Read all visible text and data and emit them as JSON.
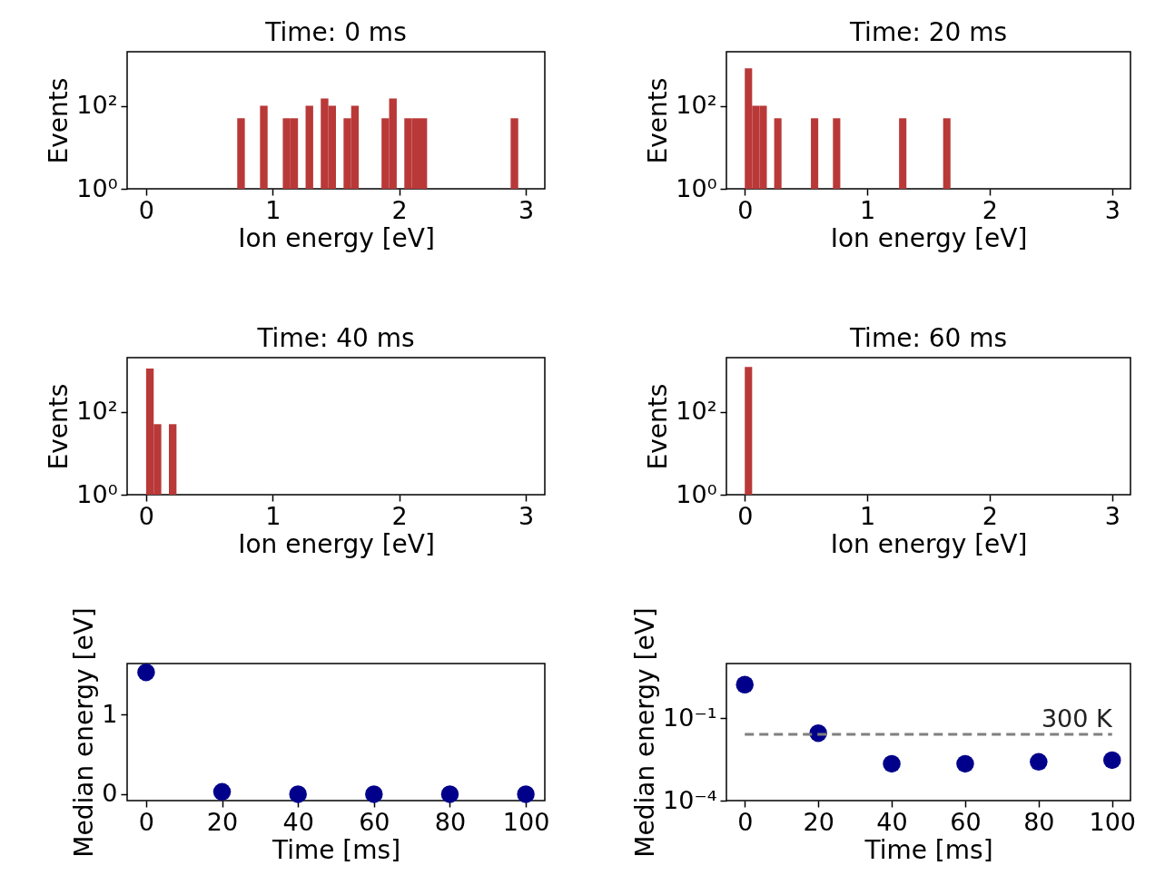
{
  "chart_data": [
    {
      "type": "histogram",
      "title": "Time: 0 ms",
      "xlabel": "Ion energy [eV]",
      "ylabel": "Events",
      "color": "#b93838",
      "log": true,
      "xlim": [
        -0.15,
        3.15
      ],
      "xticks": [
        0,
        1,
        2,
        3
      ],
      "ylim": [
        1,
        2000
      ],
      "yticks": [
        {
          "value": 1,
          "label": "10⁰"
        },
        {
          "value": 100,
          "label": "10²"
        }
      ],
      "bins": [
        0.72,
        0.78,
        0.9,
        0.96,
        1.08,
        1.14,
        1.2,
        1.26,
        1.32,
        1.38,
        1.44,
        1.5,
        1.56,
        1.62,
        1.68,
        1.86,
        1.92,
        1.98,
        2.04,
        2.1,
        2.16,
        2.22,
        2.88,
        2.94
      ],
      "values": [
        50,
        null,
        100,
        null,
        50,
        50,
        null,
        100,
        null,
        150,
        100,
        null,
        50,
        100,
        null,
        50,
        150,
        null,
        50,
        50,
        50,
        null,
        50
      ]
    },
    {
      "type": "histogram",
      "title": "Time: 20 ms",
      "xlabel": "Ion energy [eV]",
      "ylabel": "Events",
      "color": "#b93838",
      "log": true,
      "xlim": [
        -0.15,
        3.15
      ],
      "xticks": [
        0,
        1,
        2,
        3
      ],
      "ylim": [
        1,
        2000
      ],
      "yticks": [
        {
          "value": 1,
          "label": "10⁰"
        },
        {
          "value": 100,
          "label": "10²"
        }
      ],
      "bins": [
        0,
        0.06,
        0.12,
        0.18,
        0.24,
        0.3,
        0.54,
        0.6,
        0.72,
        0.78,
        1.26,
        1.32,
        1.62,
        1.68
      ],
      "values": [
        800,
        100,
        100,
        null,
        50,
        null,
        50,
        null,
        50,
        null,
        50,
        null,
        50
      ]
    },
    {
      "type": "histogram",
      "title": "Time: 40 ms",
      "xlabel": "Ion energy [eV]",
      "ylabel": "Events",
      "color": "#b93838",
      "log": true,
      "xlim": [
        -0.15,
        3.15
      ],
      "xticks": [
        0,
        1,
        2,
        3
      ],
      "ylim": [
        1,
        2000
      ],
      "yticks": [
        {
          "value": 1,
          "label": "10⁰"
        },
        {
          "value": 100,
          "label": "10²"
        }
      ],
      "bins": [
        0,
        0.06,
        0.12,
        0.18,
        0.24
      ],
      "values": [
        1100,
        50,
        null,
        50
      ]
    },
    {
      "type": "histogram",
      "title": "Time: 60 ms",
      "xlabel": "Ion energy [eV]",
      "ylabel": "Events",
      "color": "#b93838",
      "log": true,
      "xlim": [
        -0.15,
        3.15
      ],
      "xticks": [
        0,
        1,
        2,
        3
      ],
      "ylim": [
        1,
        2000
      ],
      "yticks": [
        {
          "value": 1,
          "label": "10⁰"
        },
        {
          "value": 100,
          "label": "10²"
        }
      ],
      "bins": [
        0,
        0.06
      ],
      "values": [
        1200
      ]
    },
    {
      "type": "scatter",
      "xlabel": "Time [ms]",
      "ylabel": "Median energy [eV]",
      "color": "#00008b",
      "marker": "circle",
      "x": [
        0,
        20,
        40,
        60,
        80,
        100
      ],
      "values": [
        1.53,
        0.03,
        0,
        0,
        0,
        0
      ],
      "xlim": [
        -5,
        105
      ],
      "xticks": [
        0,
        20,
        40,
        60,
        80,
        100
      ],
      "ylim": [
        -0.08,
        1.64
      ],
      "yticks": [
        0,
        1
      ]
    },
    {
      "type": "scatter",
      "xlabel": "Time [ms]",
      "ylabel": "Median energy [eV]",
      "color": "#00008b",
      "marker": "circle",
      "log": true,
      "x": [
        0,
        20,
        40,
        60,
        80,
        100
      ],
      "values": [
        1.7,
        0.029,
        0.0022,
        0.0022,
        0.0026,
        0.003
      ],
      "xlim": [
        -5,
        105
      ],
      "xticks": [
        0,
        20,
        40,
        60,
        80,
        100
      ],
      "ylim": [
        0.0001,
        10
      ],
      "yticks": [
        {
          "value": 0.1,
          "label": "10⁻¹"
        },
        {
          "value": 0.0001,
          "label": "10⁻⁴"
        }
      ],
      "ref_lines": [
        {
          "axis": "y",
          "value": 0.0259,
          "label": "300 K",
          "color": "#808080",
          "line_style": "dashed"
        }
      ]
    }
  ]
}
